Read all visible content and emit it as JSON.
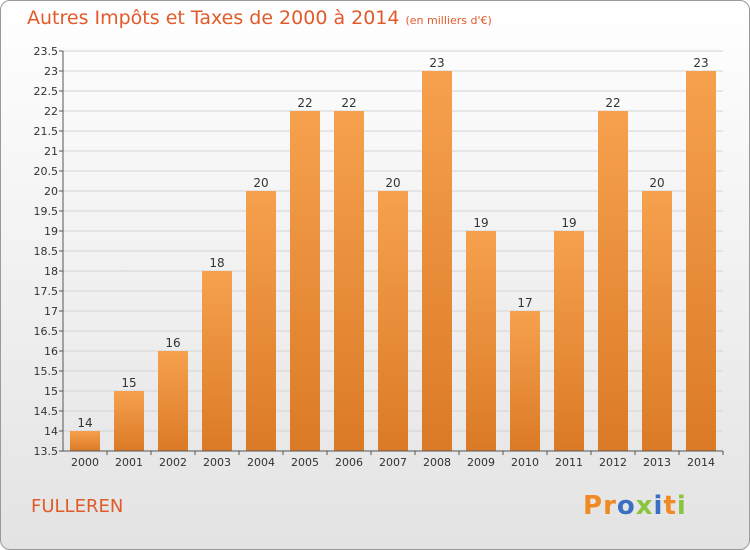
{
  "header": {
    "title": "Autres Impôts et Taxes de 2000 à 2014",
    "unit": "(en milliers d'€)"
  },
  "footer": {
    "location": "FULLEREN",
    "logo_text": "Proxiti"
  },
  "colors": {
    "title": "#e25a2a",
    "bar_light": "#f6a14e",
    "bar_dark": "#db7a26",
    "grid": "#d4d4d4",
    "logo_letters": [
      "#f08a24",
      "#f08a24",
      "#3a6fc4",
      "#8bc43f",
      "#3a6fc4",
      "#f08a24",
      "#8bc43f"
    ]
  },
  "chart_data": {
    "type": "bar",
    "title": "Autres Impôts et Taxes de 2000 à 2014",
    "categories": [
      "2000",
      "2001",
      "2002",
      "2003",
      "2004",
      "2005",
      "2006",
      "2007",
      "2008",
      "2009",
      "2010",
      "2011",
      "2012",
      "2013",
      "2014"
    ],
    "values": [
      14,
      15,
      16,
      18,
      20,
      22,
      22,
      20,
      23,
      19,
      17,
      19,
      22,
      20,
      23
    ],
    "data_labels": [
      "14",
      "15",
      "16",
      "18",
      "20",
      "22",
      "22",
      "20",
      "23",
      "19",
      "17",
      "19",
      "22",
      "20",
      "23"
    ],
    "ylim": [
      13.5,
      23.5
    ],
    "yticks": [
      "13.5",
      "14",
      "14.5",
      "15",
      "15.5",
      "16",
      "16.5",
      "17",
      "17.5",
      "18",
      "18.5",
      "19",
      "19.5",
      "20",
      "20.5",
      "21",
      "21.5",
      "22",
      "22.5",
      "23",
      "23.5"
    ],
    "grid": true
  }
}
